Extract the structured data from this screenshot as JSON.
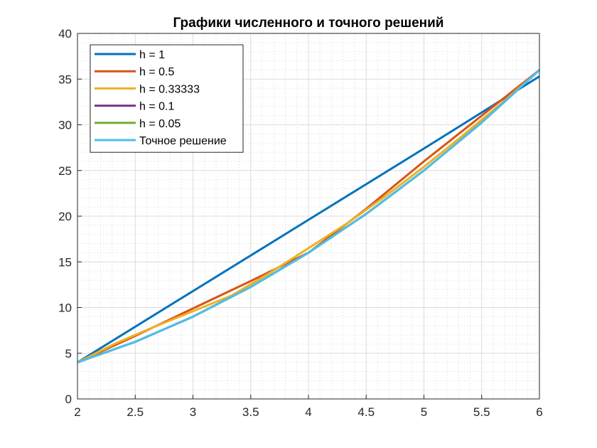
{
  "chart_data": {
    "type": "line",
    "title": "Графики численного и точного решений",
    "xlabel": "",
    "ylabel": "",
    "xlim": [
      2,
      6
    ],
    "ylim": [
      0,
      40
    ],
    "xticks": [
      2,
      2.5,
      3,
      3.5,
      4,
      4.5,
      5,
      5.5,
      6
    ],
    "xtick_labels": [
      "2",
      "2.5",
      "3",
      "3.5",
      "4",
      "4.5",
      "5",
      "5.5",
      "6"
    ],
    "yticks": [
      0,
      5,
      10,
      15,
      20,
      25,
      30,
      35,
      40
    ],
    "ytick_labels": [
      "0",
      "5",
      "10",
      "15",
      "20",
      "25",
      "30",
      "35",
      "40"
    ],
    "grid": "on, dotted minor grid",
    "legend_position": "top-left",
    "series": [
      {
        "name": "h = 1",
        "color": "#0072BD",
        "x": [
          2,
          3,
          4,
          5,
          6
        ],
        "y": [
          4,
          11.8,
          19.6,
          27.4,
          35.3
        ]
      },
      {
        "name": "h = 0.5",
        "color": "#D95319",
        "x": [
          2,
          2.5,
          3,
          3.5,
          4,
          4.5,
          5,
          5.5,
          6
        ],
        "y": [
          4,
          6.9,
          9.9,
          12.9,
          16.0,
          20.8,
          26.0,
          31.0,
          36.0
        ]
      },
      {
        "name": "h = 0.33333",
        "color": "#EDB120",
        "x": [
          2,
          2.3333,
          2.6667,
          3,
          3.3333,
          3.6667,
          4,
          4.3333,
          4.6667,
          5,
          5.3333,
          5.6667,
          6
        ],
        "y": [
          4,
          6.1,
          7.9,
          9.6,
          11.3,
          13.8,
          16.5,
          19.2,
          22.2,
          25.4,
          28.8,
          32.3,
          36.0
        ]
      },
      {
        "name": "h = 0.1",
        "color": "#7E2F8E",
        "x": [
          2,
          2.5,
          3,
          3.5,
          4,
          4.5,
          5,
          5.5,
          6
        ],
        "y": [
          4,
          6.25,
          9.0,
          12.25,
          16.0,
          20.25,
          25.0,
          30.25,
          36.0
        ]
      },
      {
        "name": "h = 0.05",
        "color": "#77AC30",
        "x": [
          2,
          2.5,
          3,
          3.5,
          4,
          4.5,
          5,
          5.5,
          6
        ],
        "y": [
          4,
          6.25,
          9.0,
          12.25,
          16.0,
          20.25,
          25.0,
          30.25,
          36.0
        ]
      },
      {
        "name": "Точное решение",
        "color": "#4DBEEE",
        "x": [
          2,
          2.5,
          3,
          3.5,
          4,
          4.5,
          5,
          5.5,
          6
        ],
        "y": [
          4,
          6.25,
          9.0,
          12.25,
          16.0,
          20.25,
          25.0,
          30.25,
          36.0
        ]
      }
    ]
  }
}
